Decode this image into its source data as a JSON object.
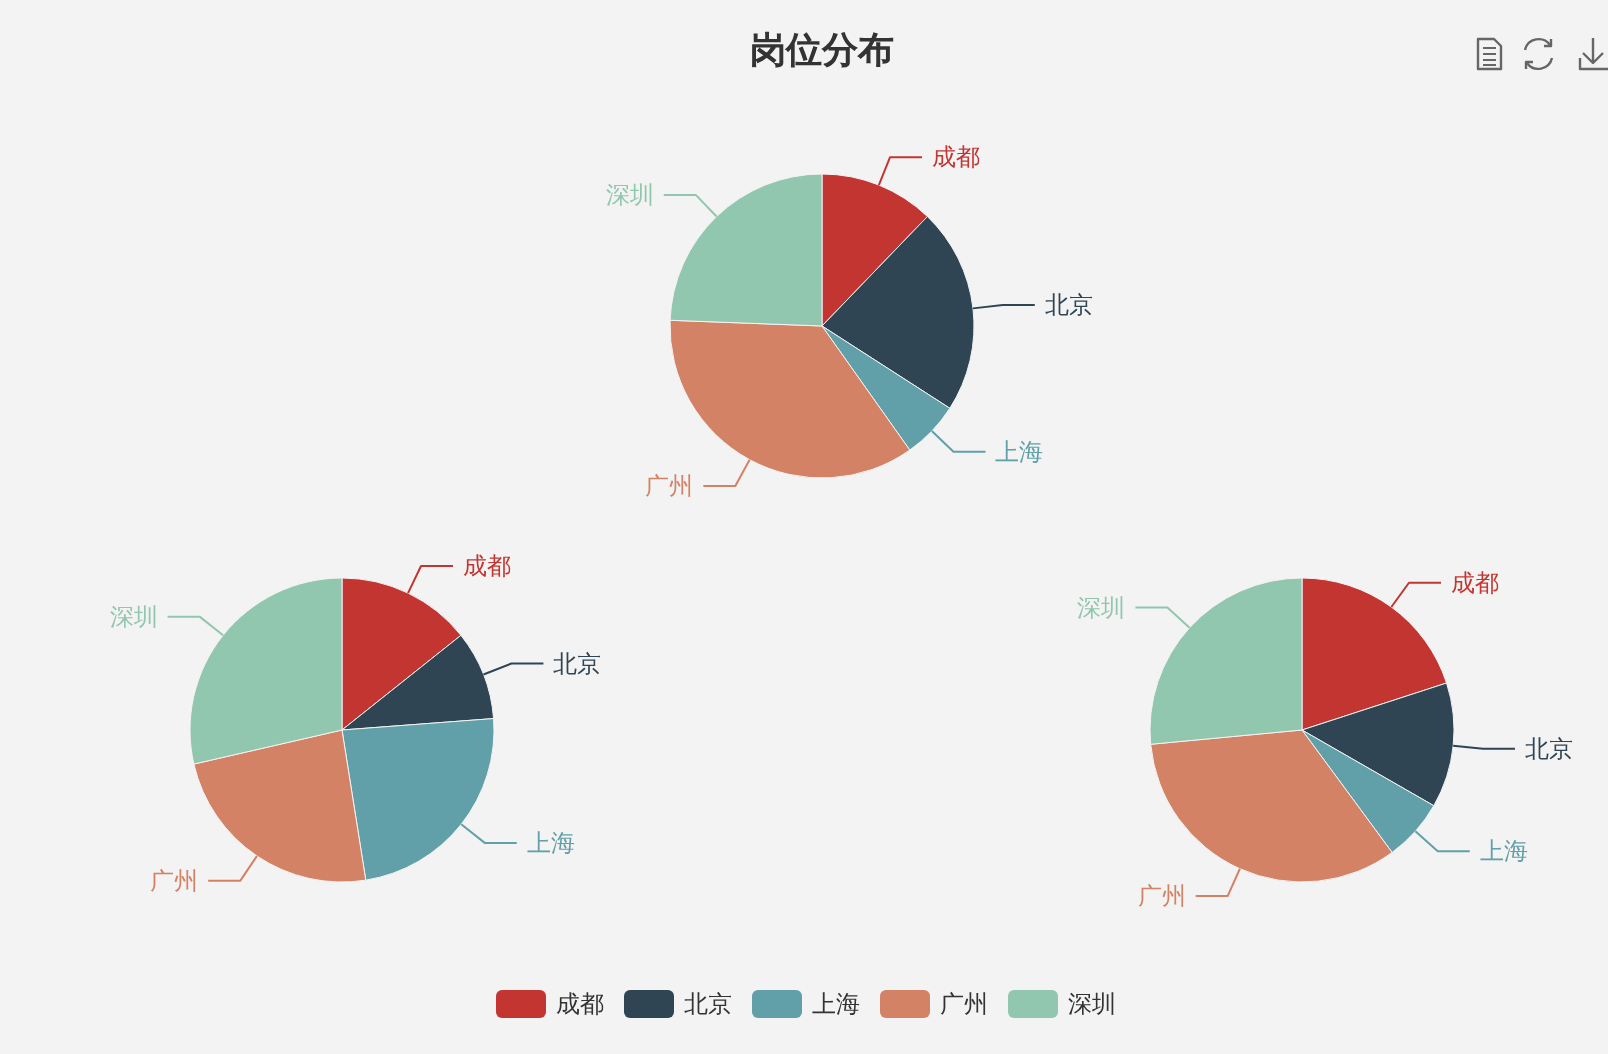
{
  "chart_data": [
    {
      "type": "pie",
      "title": "岗位分布",
      "legend": "bottom",
      "categories": [
        "成都",
        "北京",
        "上海",
        "广州",
        "深圳"
      ],
      "values": [
        12.2,
        21.9,
        6.1,
        35.4,
        24.4
      ],
      "colors": [
        "#c23531",
        "#2f4554",
        "#61a0a8",
        "#d48265",
        "#91c7ae"
      ]
    },
    {
      "type": "pie",
      "categories": [
        "成都",
        "北京",
        "上海",
        "广州",
        "深圳"
      ],
      "values": [
        14.3,
        9.5,
        23.7,
        23.9,
        28.6
      ],
      "colors": [
        "#c23531",
        "#2f4554",
        "#61a0a8",
        "#d48265",
        "#91c7ae"
      ]
    },
    {
      "type": "pie",
      "categories": [
        "成都",
        "北京",
        "上海",
        "广州",
        "深圳"
      ],
      "values": [
        20.0,
        13.3,
        6.6,
        33.6,
        26.5
      ],
      "colors": [
        "#c23531",
        "#2f4554",
        "#61a0a8",
        "#d48265",
        "#91c7ae"
      ]
    }
  ]
}
